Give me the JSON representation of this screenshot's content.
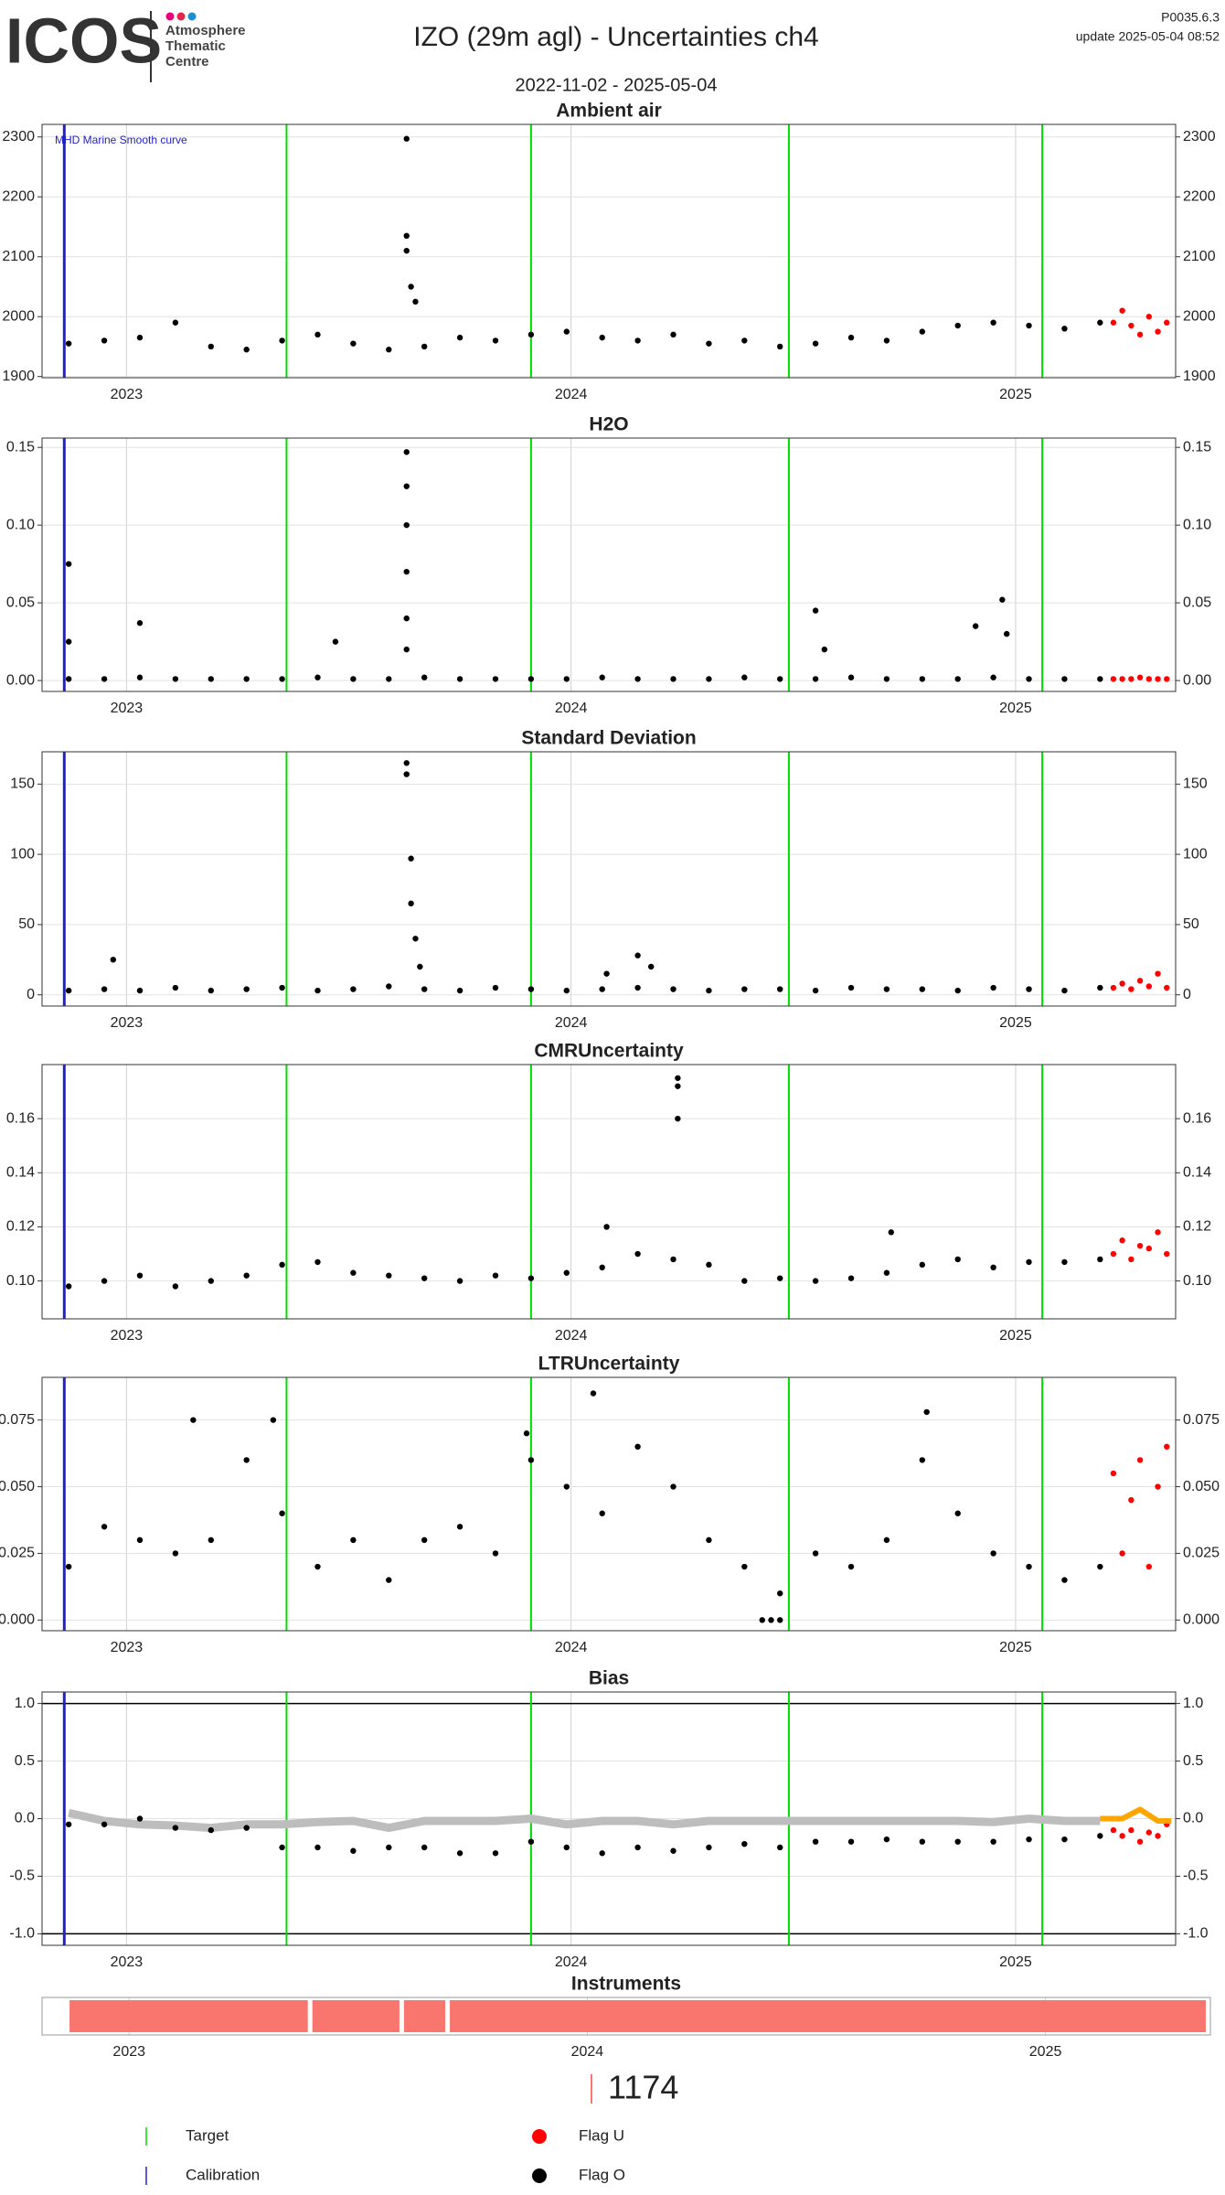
{
  "header": {
    "logo": "ICOS",
    "logo_lines": [
      "Atmosphere",
      "Thematic",
      "Centre"
    ],
    "title": "IZO  (29m agl) - Uncertainties ch4",
    "subtitle": "2022-11-02 - 2025-05-04",
    "version": "P0035.6.3",
    "update": "update  2025-05-04 08:52"
  },
  "markers": {
    "target": {
      "name": "Target",
      "color": "#00dd00",
      "x": [
        2023.36,
        2023.91,
        2024.49,
        2025.06
      ]
    },
    "calibration": {
      "name": "Calibration",
      "color": "#2222cc",
      "x": [
        2022.86
      ]
    }
  },
  "flags": [
    {
      "name": "Flag U",
      "color": "#ff0000"
    },
    {
      "name": "Flag O",
      "color": "#000000"
    }
  ],
  "chart_data": [
    {
      "type": "scatter",
      "title": "Ambient air",
      "annotation": "MHD Marine Smooth curve",
      "xlim": [
        2022.81,
        2025.36
      ],
      "xticks": [
        2023,
        2024,
        2025
      ],
      "ylim": [
        1898,
        2321
      ],
      "yticks": [
        1900,
        2000,
        2100,
        2200,
        2300
      ],
      "grid": true,
      "series": [
        {
          "color": "#000000",
          "x": [
            2022.87,
            2022.95,
            2023.03,
            2023.11,
            2023.19,
            2023.27,
            2023.35,
            2023.43,
            2023.51,
            2023.59,
            2023.67,
            2023.75,
            2023.83,
            2023.91,
            2023.99,
            2024.07,
            2024.15,
            2024.23,
            2024.31,
            2024.39,
            2024.47,
            2024.55,
            2024.63,
            2024.71,
            2024.79,
            2024.87,
            2024.95,
            2025.03,
            2025.11,
            2025.19,
            2023.63,
            2023.63,
            2023.63,
            2023.64,
            2023.65
          ],
          "values": [
            1955,
            1960,
            1965,
            1990,
            1950,
            1945,
            1960,
            1970,
            1955,
            1945,
            1950,
            1965,
            1960,
            1970,
            1975,
            1965,
            1960,
            1970,
            1955,
            1960,
            1950,
            1955,
            1965,
            1960,
            1975,
            1985,
            1990,
            1985,
            1980,
            1990,
            2297,
            2135,
            2110,
            2050,
            2025
          ]
        },
        {
          "color": "#ff0000",
          "x": [
            2025.22,
            2025.24,
            2025.26,
            2025.28,
            2025.3,
            2025.32,
            2025.34
          ],
          "values": [
            1990,
            2010,
            1985,
            1970,
            2000,
            1975,
            1990
          ]
        }
      ]
    },
    {
      "type": "scatter",
      "title": "H2O",
      "xlim": [
        2022.81,
        2025.36
      ],
      "xticks": [
        2023,
        2024,
        2025
      ],
      "ylim": [
        -0.007,
        0.156
      ],
      "yticks": [
        {
          "value": 0,
          "label": "0.00"
        },
        {
          "value": 0.05,
          "label": "0.05"
        },
        {
          "value": 0.1,
          "label": "0.10"
        },
        {
          "value": 0.15,
          "label": "0.15"
        }
      ],
      "grid": true,
      "series": [
        {
          "color": "#000000",
          "x": [
            2022.87,
            2022.95,
            2023.03,
            2023.11,
            2023.19,
            2023.27,
            2023.35,
            2023.43,
            2023.51,
            2023.59,
            2023.67,
            2023.75,
            2023.83,
            2023.91,
            2023.99,
            2024.07,
            2024.15,
            2024.23,
            2024.31,
            2024.39,
            2024.47,
            2024.55,
            2024.63,
            2024.71,
            2024.79,
            2024.87,
            2024.95,
            2025.03,
            2025.11,
            2025.19,
            2022.87,
            2022.87,
            2023.03,
            2023.47,
            2023.63,
            2023.63,
            2023.63,
            2023.63,
            2023.63,
            2023.63,
            2024.55,
            2024.57,
            2024.91,
            2024.97,
            2024.98
          ],
          "values": [
            0.001,
            0.001,
            0.002,
            0.001,
            0.001,
            0.001,
            0.001,
            0.002,
            0.001,
            0.001,
            0.002,
            0.001,
            0.001,
            0.001,
            0.001,
            0.002,
            0.001,
            0.001,
            0.001,
            0.002,
            0.001,
            0.001,
            0.002,
            0.001,
            0.001,
            0.001,
            0.002,
            0.001,
            0.001,
            0.001,
            0.075,
            0.025,
            0.037,
            0.025,
            0.147,
            0.125,
            0.1,
            0.07,
            0.04,
            0.02,
            0.045,
            0.02,
            0.035,
            0.052,
            0.03
          ]
        },
        {
          "color": "#ff0000",
          "x": [
            2025.22,
            2025.24,
            2025.26,
            2025.28,
            2025.3,
            2025.32,
            2025.34
          ],
          "values": [
            0.001,
            0.001,
            0.001,
            0.002,
            0.001,
            0.001,
            0.001
          ]
        }
      ]
    },
    {
      "type": "scatter",
      "title": "Standard Deviation",
      "xlim": [
        2022.81,
        2025.36
      ],
      "xticks": [
        2023,
        2024,
        2025
      ],
      "ylim": [
        -8,
        173
      ],
      "yticks": [
        0,
        50,
        100,
        150
      ],
      "grid": true,
      "series": [
        {
          "color": "#000000",
          "x": [
            2022.87,
            2022.95,
            2023.03,
            2023.11,
            2023.19,
            2023.27,
            2023.35,
            2023.43,
            2023.51,
            2023.59,
            2023.67,
            2023.75,
            2023.83,
            2023.91,
            2023.99,
            2024.07,
            2024.15,
            2024.23,
            2024.31,
            2024.39,
            2024.47,
            2024.55,
            2024.63,
            2024.71,
            2024.79,
            2024.87,
            2024.95,
            2025.03,
            2025.11,
            2025.19,
            2022.97,
            2023.63,
            2023.63,
            2023.64,
            2023.64,
            2023.65,
            2023.66,
            2024.08,
            2024.15,
            2024.18
          ],
          "values": [
            3,
            4,
            3,
            5,
            3,
            4,
            5,
            3,
            4,
            6,
            4,
            3,
            5,
            4,
            3,
            4,
            5,
            4,
            3,
            4,
            4,
            3,
            5,
            4,
            4,
            3,
            5,
            4,
            3,
            5,
            25,
            165,
            157,
            97,
            65,
            40,
            20,
            15,
            28,
            20
          ]
        },
        {
          "color": "#ff0000",
          "x": [
            2025.22,
            2025.24,
            2025.26,
            2025.28,
            2025.3,
            2025.32,
            2025.34
          ],
          "values": [
            5,
            8,
            4,
            10,
            6,
            15,
            5
          ]
        }
      ]
    },
    {
      "type": "scatter",
      "title": "CMRUncertainty",
      "xlim": [
        2022.81,
        2025.36
      ],
      "xticks": [
        2023,
        2024,
        2025
      ],
      "ylim": [
        0.086,
        0.18
      ],
      "yticks": [
        {
          "value": 0.1,
          "label": "0.10"
        },
        0.12,
        0.14,
        0.16
      ],
      "grid": true,
      "series": [
        {
          "color": "#000000",
          "x": [
            2022.87,
            2022.95,
            2023.03,
            2023.11,
            2023.19,
            2023.27,
            2023.35,
            2023.43,
            2023.51,
            2023.59,
            2023.67,
            2023.75,
            2023.83,
            2023.91,
            2023.99,
            2024.07,
            2024.15,
            2024.23,
            2024.31,
            2024.39,
            2024.47,
            2024.55,
            2024.63,
            2024.71,
            2024.79,
            2024.87,
            2024.95,
            2025.03,
            2025.11,
            2025.19,
            2024.24,
            2024.24,
            2024.24,
            2024.08,
            2024.72
          ],
          "values": [
            0.098,
            0.1,
            0.102,
            0.098,
            0.1,
            0.102,
            0.106,
            0.107,
            0.103,
            0.102,
            0.101,
            0.1,
            0.102,
            0.101,
            0.103,
            0.105,
            0.11,
            0.108,
            0.106,
            0.1,
            0.101,
            0.1,
            0.101,
            0.103,
            0.106,
            0.108,
            0.105,
            0.107,
            0.107,
            0.108,
            0.175,
            0.172,
            0.16,
            0.12,
            0.118
          ]
        },
        {
          "color": "#ff0000",
          "x": [
            2025.22,
            2025.24,
            2025.26,
            2025.28,
            2025.3,
            2025.32,
            2025.34
          ],
          "values": [
            0.11,
            0.115,
            0.108,
            0.113,
            0.112,
            0.118,
            0.11
          ]
        }
      ]
    },
    {
      "type": "scatter",
      "title": "LTRUncertainty",
      "xlim": [
        2022.81,
        2025.36
      ],
      "xticks": [
        2023,
        2024,
        2025
      ],
      "ylim": [
        -0.004,
        0.091
      ],
      "yticks": [
        {
          "value": 0,
          "label": "0.000"
        },
        {
          "value": 0.025,
          "label": "0.025"
        },
        {
          "value": 0.05,
          "label": "0.050"
        },
        {
          "value": 0.075,
          "label": "0.075"
        }
      ],
      "grid": true,
      "series": [
        {
          "color": "#000000",
          "x": [
            2022.87,
            2022.95,
            2023.03,
            2023.11,
            2023.19,
            2023.27,
            2023.35,
            2023.43,
            2023.51,
            2023.59,
            2023.67,
            2023.75,
            2023.83,
            2023.91,
            2023.99,
            2024.07,
            2024.15,
            2024.23,
            2024.31,
            2024.39,
            2024.47,
            2024.55,
            2024.63,
            2024.71,
            2024.79,
            2024.87,
            2024.95,
            2025.03,
            2025.11,
            2025.19,
            2023.33,
            2023.9,
            2024.05,
            2024.43,
            2024.45,
            2024.47,
            2024.8,
            2023.15
          ],
          "values": [
            0.02,
            0.035,
            0.03,
            0.025,
            0.03,
            0.06,
            0.04,
            0.02,
            0.03,
            0.015,
            0.03,
            0.035,
            0.025,
            0.06,
            0.05,
            0.04,
            0.065,
            0.05,
            0.03,
            0.02,
            0.01,
            0.025,
            0.02,
            0.03,
            0.06,
            0.04,
            0.025,
            0.02,
            0.015,
            0.02,
            0.075,
            0.07,
            0.085,
            0,
            0,
            0,
            0.078,
            0.075
          ]
        },
        {
          "color": "#ff0000",
          "x": [
            2025.22,
            2025.24,
            2025.26,
            2025.28,
            2025.3,
            2025.32,
            2025.34
          ],
          "values": [
            0.055,
            0.025,
            0.045,
            0.06,
            0.02,
            0.05,
            0.065
          ]
        }
      ]
    },
    {
      "type": "scatter",
      "title": "Bias",
      "xlim": [
        2022.81,
        2025.36
      ],
      "xticks": [
        2023,
        2024,
        2025
      ],
      "ylim": [
        -1.1,
        1.1
      ],
      "yticks": [
        {
          "value": -1,
          "label": "-1.0"
        },
        {
          "value": -0.5,
          "label": "-0.5"
        },
        {
          "value": 0,
          "label": "0.0"
        },
        {
          "value": 0.5,
          "label": "0.5"
        },
        {
          "value": 1,
          "label": "1.0"
        }
      ],
      "grid": true,
      "reference_lines": [
        -1,
        1
      ],
      "series": [
        {
          "color": "#bdbdbd",
          "mode": "line",
          "x": [
            2022.87,
            2022.95,
            2023.03,
            2023.11,
            2023.19,
            2023.27,
            2023.35,
            2023.43,
            2023.51,
            2023.59,
            2023.67,
            2023.75,
            2023.83,
            2023.91,
            2023.99,
            2024.07,
            2024.15,
            2024.23,
            2024.31,
            2024.39,
            2024.47,
            2024.55,
            2024.63,
            2024.71,
            2024.79,
            2024.87,
            2024.95,
            2025.03,
            2025.11,
            2025.19
          ],
          "values": [
            0.05,
            -0.02,
            -0.05,
            -0.06,
            -0.08,
            -0.05,
            -0.05,
            -0.03,
            -0.02,
            -0.08,
            -0.02,
            -0.02,
            -0.02,
            0,
            -0.05,
            -0.02,
            -0.02,
            -0.05,
            -0.02,
            -0.02,
            -0.02,
            -0.02,
            -0.02,
            -0.02,
            -0.02,
            -0.02,
            -0.03,
            0,
            -0.02,
            -0.02
          ]
        },
        {
          "color": "#000000",
          "x": [
            2022.87,
            2022.95,
            2023.03,
            2023.11,
            2023.19,
            2023.27,
            2023.35,
            2023.43,
            2023.51,
            2023.59,
            2023.67,
            2023.75,
            2023.83,
            2023.91,
            2023.99,
            2024.07,
            2024.15,
            2024.23,
            2024.31,
            2024.39,
            2024.47,
            2024.55,
            2024.63,
            2024.71,
            2024.79,
            2024.87,
            2024.95,
            2025.03,
            2025.11,
            2025.19
          ],
          "values": [
            -0.05,
            -0.05,
            0,
            -0.08,
            -0.1,
            -0.08,
            -0.25,
            -0.25,
            -0.28,
            -0.25,
            -0.25,
            -0.3,
            -0.3,
            -0.2,
            -0.25,
            -0.3,
            -0.25,
            -0.28,
            -0.25,
            -0.22,
            -0.25,
            -0.2,
            -0.2,
            -0.18,
            -0.2,
            -0.2,
            -0.2,
            -0.18,
            -0.18,
            -0.15
          ]
        },
        {
          "color": "#ff0000",
          "x": [
            2025.22,
            2025.24,
            2025.26,
            2025.28,
            2025.3,
            2025.32,
            2025.34
          ],
          "values": [
            -0.1,
            -0.15,
            -0.1,
            -0.2,
            -0.12,
            -0.15,
            -0.05
          ]
        },
        {
          "color": "#ffa500",
          "mode": "line",
          "x": [
            2025.19,
            2025.24,
            2025.28,
            2025.32,
            2025.35
          ],
          "values": [
            0,
            0,
            0.08,
            -0.02,
            -0.02
          ]
        }
      ]
    },
    {
      "type": "timeline",
      "title": "Instruments",
      "label": "1174",
      "color": "#f8766d",
      "xlim": [
        2022.81,
        2025.36
      ],
      "xticks": [
        2023,
        2024,
        2025
      ],
      "segments": [
        {
          "start": 2022.87,
          "end": 2023.39
        },
        {
          "start": 2023.4,
          "end": 2023.59
        },
        {
          "start": 2023.6,
          "end": 2023.69
        },
        {
          "start": 2023.7,
          "end": 2025.35
        }
      ]
    }
  ]
}
